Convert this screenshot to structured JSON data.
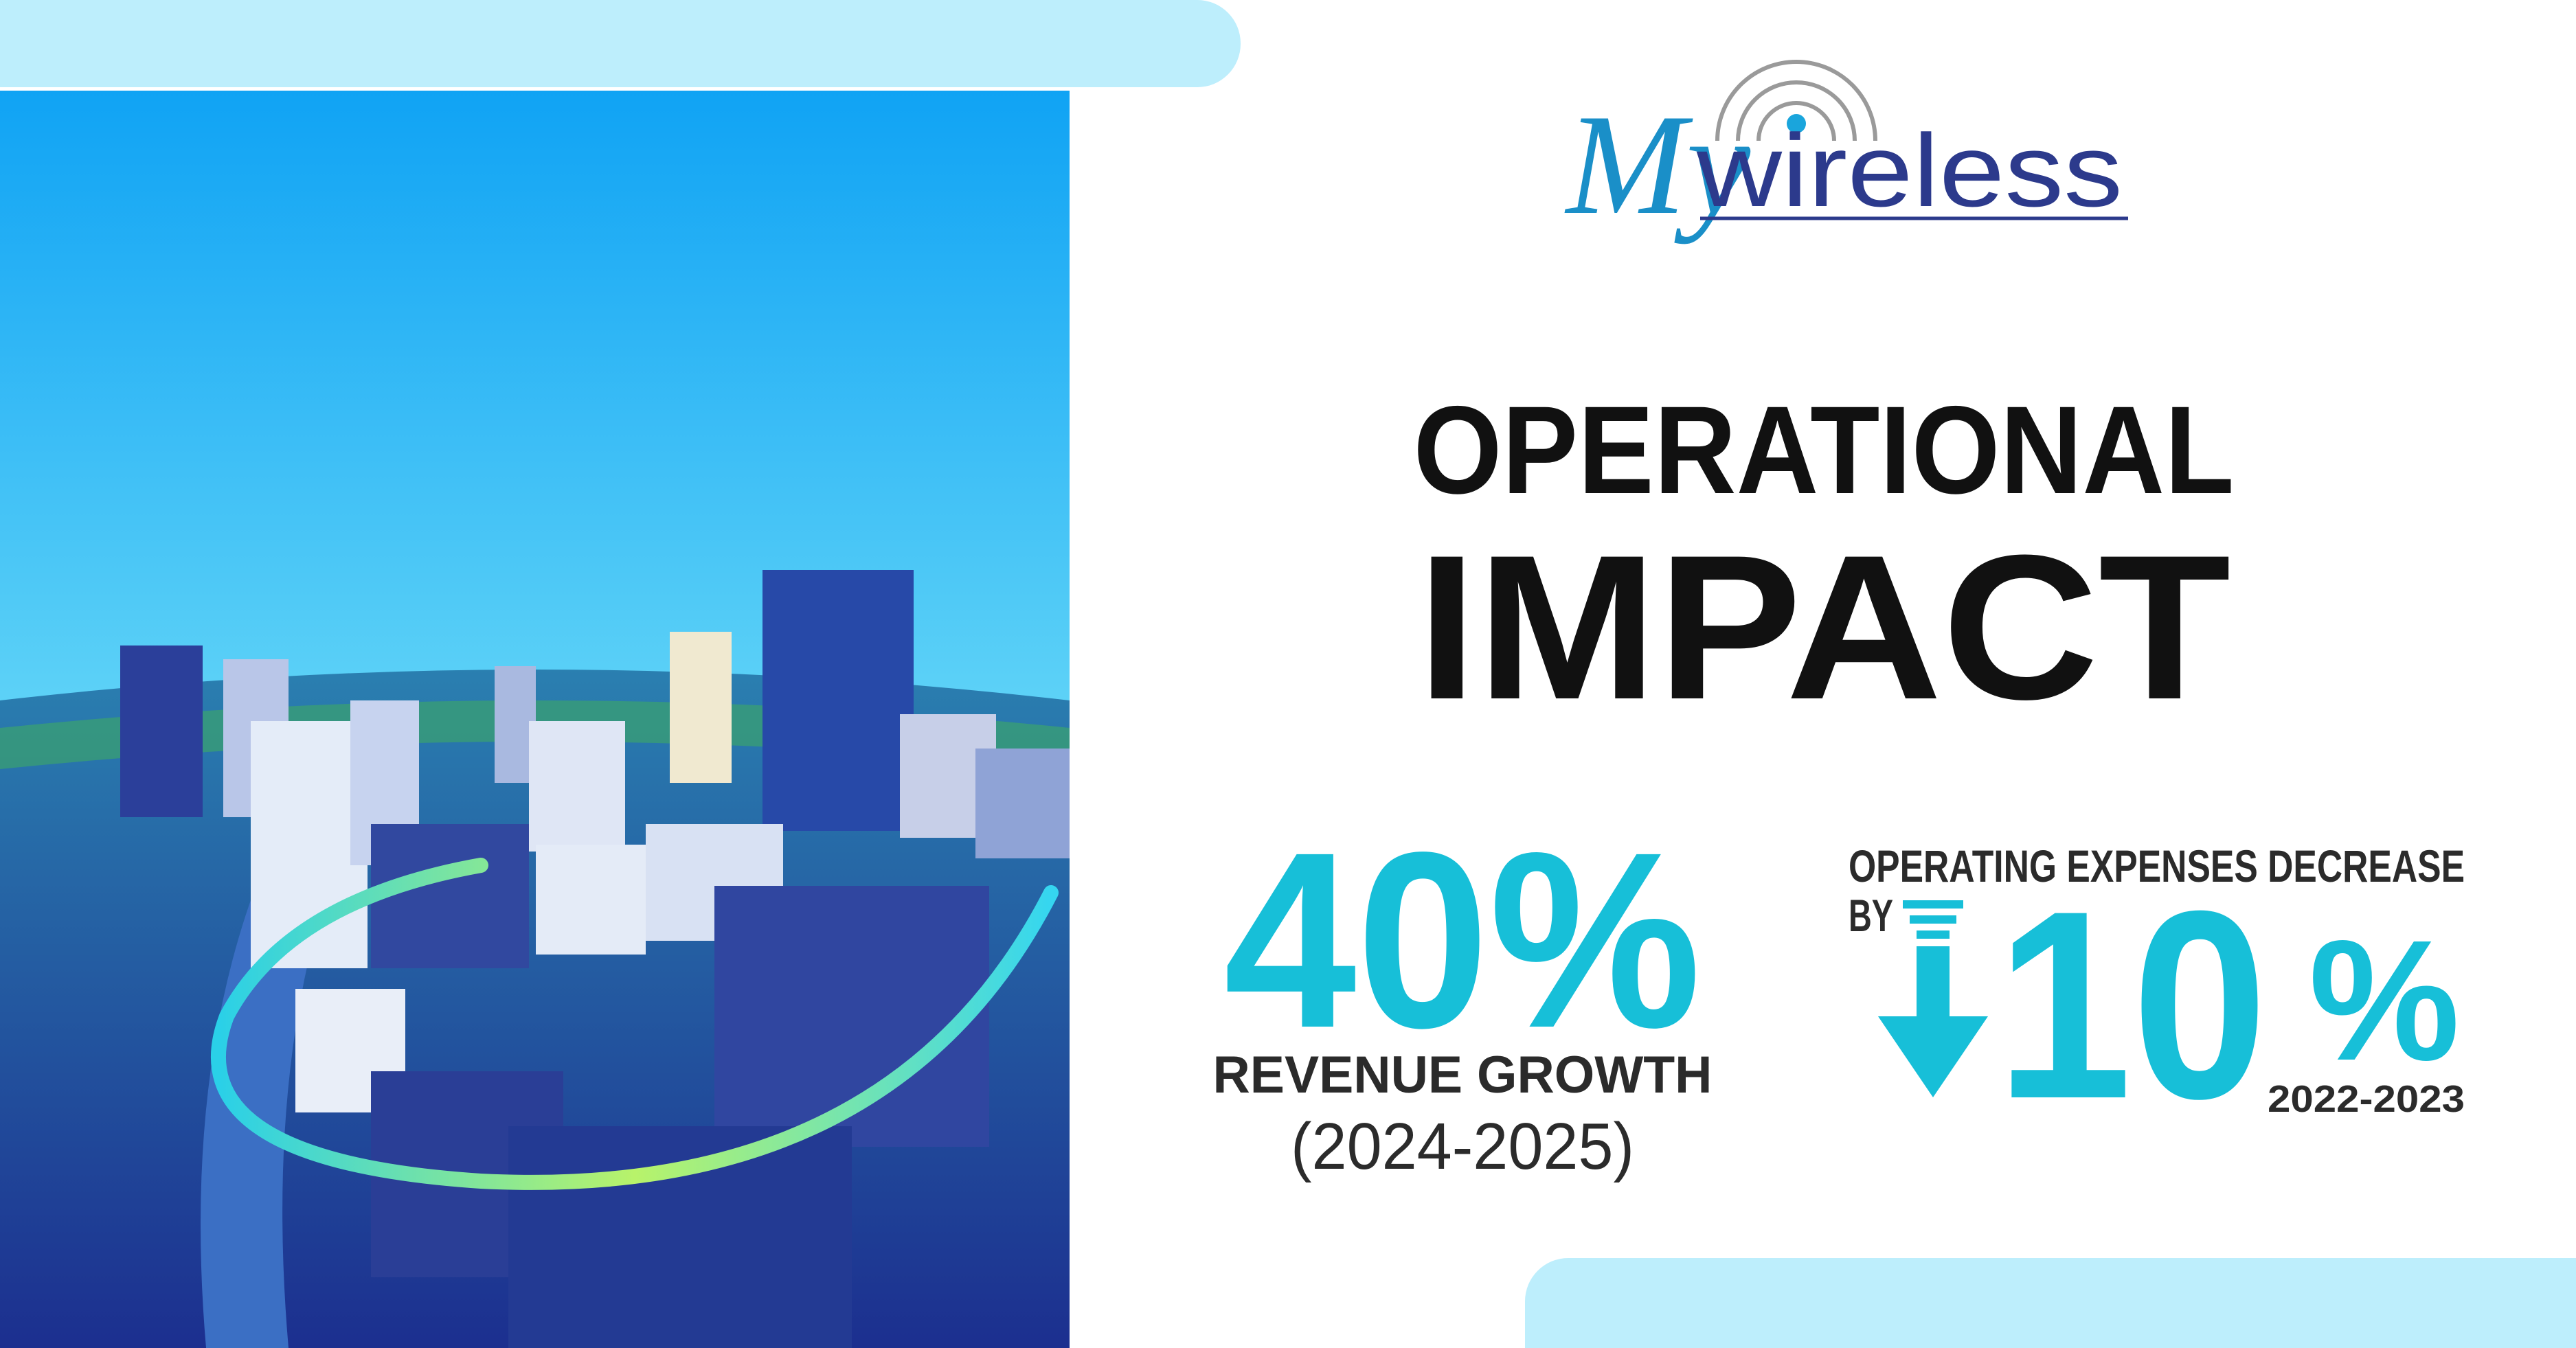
{
  "logo": {
    "my": "My",
    "wireless": "wireless"
  },
  "headline": {
    "line1": "OPERATIONAL",
    "line2": "IMPACT"
  },
  "stats": [
    {
      "value": "40%",
      "label": "REVENUE GROWTH",
      "period": "(2024-2025)"
    },
    {
      "label": "OPERATING EXPENSES DECREASE",
      "prefix": "BY",
      "value": "10",
      "unit": "%",
      "period": "2022-2023"
    }
  ]
}
